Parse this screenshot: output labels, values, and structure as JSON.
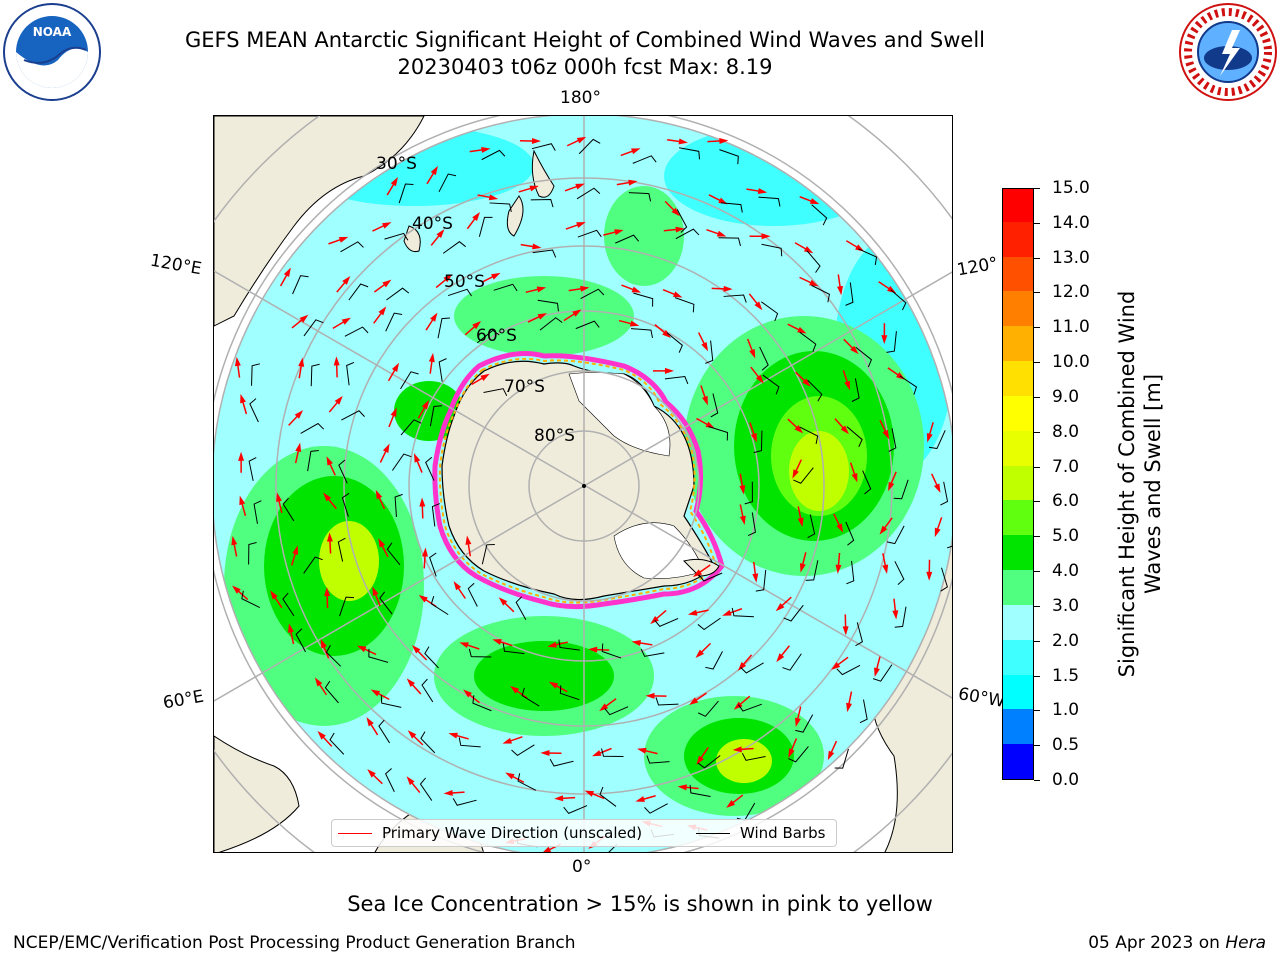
{
  "title": {
    "line1": "GEFS MEAN Antarctic Significant Height of Combined Wind Waves and Swell",
    "line2": "20230403 t06z 000h fcst   Max: 8.19"
  },
  "map": {
    "longitude_labels": {
      "top": "180°",
      "bottom": "0°",
      "left_upper": "120°E",
      "left_lower": "60°E",
      "right_upper": "120°",
      "right_lower": "60°W"
    },
    "latitude_labels": [
      "30°S",
      "40°S",
      "50°S",
      "60°S",
      "70°S",
      "80°S"
    ],
    "colors": {
      "land": "#efecdc",
      "ice_shelf": "#ffffff",
      "ocean_edge": "#ffffff",
      "grid": "#b0b0b0"
    }
  },
  "legend": {
    "wave_label": "Primary Wave Direction (unscaled)",
    "wave_color": "#ff0000",
    "barb_label": "Wind Barbs",
    "barb_color": "#000000"
  },
  "colorbar": {
    "label": "Significant Height of Combined Wind Waves and Swell [m]",
    "ticks": [
      "0.0",
      "0.5",
      "1.0",
      "1.5",
      "2.0",
      "3.0",
      "4.0",
      "5.0",
      "6.0",
      "7.0",
      "8.0",
      "9.0",
      "10.0",
      "11.0",
      "12.0",
      "13.0",
      "14.0",
      "15.0"
    ],
    "colors": [
      "#0000ff",
      "#0080ff",
      "#00ffff",
      "#40ffff",
      "#a0ffff",
      "#50ff80",
      "#00e400",
      "#60ff10",
      "#c0ff00",
      "#e8ff00",
      "#ffff00",
      "#ffe000",
      "#ffb000",
      "#ff8000",
      "#ff5000",
      "#ff2000",
      "#ff0000"
    ]
  },
  "notes": {
    "ice": "Sea Ice Concentration > 15% is shown in pink to yellow"
  },
  "footer": {
    "left": "NCEP/EMC/Verification Post Processing Product Generation Branch",
    "date": "05 Apr 2023 on ",
    "machine": "Hera"
  }
}
